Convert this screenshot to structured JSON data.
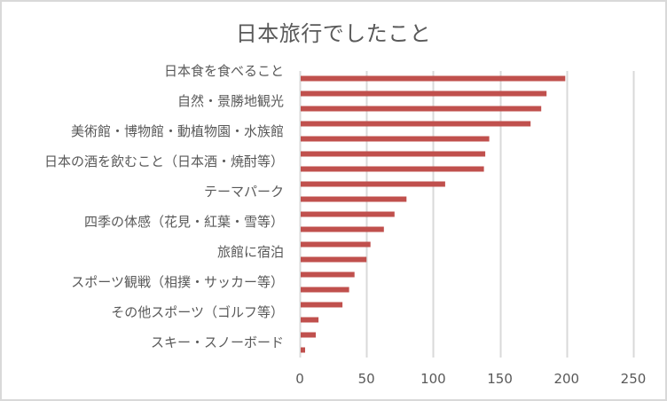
{
  "chart_data": {
    "type": "bar",
    "orientation": "horizontal",
    "title": "日本旅行でしたこと",
    "xlabel": "",
    "ylabel": "",
    "xlim": [
      0,
      250
    ],
    "xticks": [
      0,
      50,
      100,
      150,
      200,
      250
    ],
    "grid": "vertical",
    "legend": "none",
    "bar_color": "#c0504d",
    "grid_color": "#d9d9d9",
    "text_color": "#595959",
    "categories": [
      "日本食を食べること",
      "",
      "自然・景勝地観光",
      "",
      "美術館・博物館・動植物園・水族館",
      "",
      "日本の酒を飲むこと（日本酒・焼酎等）",
      "",
      "テーマパーク",
      "",
      "四季の体感（花見・紅葉・雪等）",
      "",
      "旅館に宿泊",
      "",
      "スポーツ観戦（相撲・サッカー等）",
      "",
      "その他スポーツ（ゴルフ等）",
      "",
      "スキー・スノーボード"
    ],
    "values": [
      199,
      185,
      181,
      173,
      142,
      139,
      138,
      109,
      80,
      71,
      63,
      53,
      50,
      41,
      37,
      32,
      14,
      12,
      4
    ]
  }
}
